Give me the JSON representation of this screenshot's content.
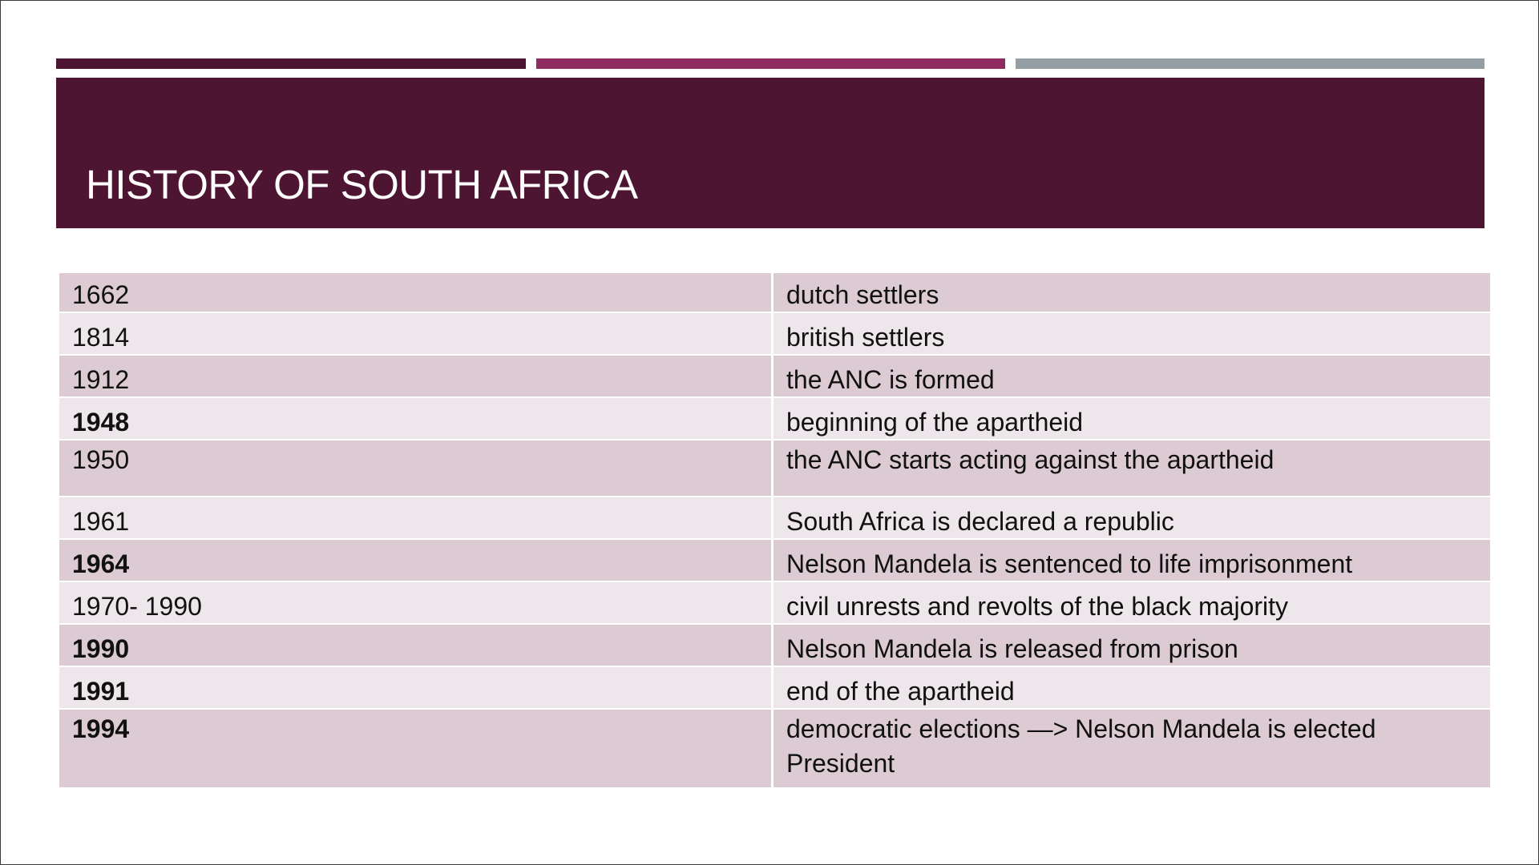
{
  "slide": {
    "title": "HISTORY OF SOUTH AFRICA"
  },
  "colors": {
    "accent_dark": "#4e1533",
    "accent_magenta": "#8f2c5f",
    "accent_gray": "#959ea3",
    "title_band": "#4e1533",
    "row_band": "#dccbd3",
    "row_light": "#ede6ea"
  },
  "timeline": {
    "rows": [
      {
        "year": "1662",
        "event": "dutch settlers",
        "bold": false
      },
      {
        "year": "1814",
        "event": "british settlers",
        "bold": false
      },
      {
        "year": "1912",
        "event": "the ANC is formed",
        "bold": false
      },
      {
        "year": "1948",
        "event": "beginning of the apartheid",
        "bold": true
      },
      {
        "year": "1950",
        "event": "the ANC starts acting against the apartheid",
        "bold": false
      },
      {
        "year": "1961",
        "event": "South Africa is declared a republic",
        "bold": false
      },
      {
        "year": "1964",
        "event": "Nelson Mandela is sentenced to life imprisonment",
        "bold": true
      },
      {
        "year": "1970- 1990",
        "event": "civil unrests and revolts of the black majority",
        "bold": false
      },
      {
        "year": "1990",
        "event": "Nelson Mandela is released from prison",
        "bold": true
      },
      {
        "year": "1991",
        "event": "end of the apartheid",
        "bold": true
      },
      {
        "year": "1994",
        "event": "democratic elections —> Nelson Mandela is elected President",
        "bold": true
      }
    ]
  }
}
